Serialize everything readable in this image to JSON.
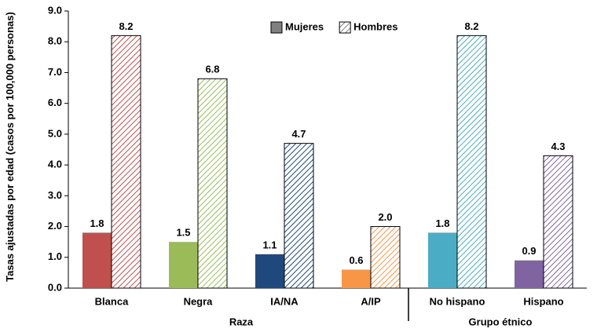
{
  "chart_data": {
    "type": "bar",
    "y_label": "Tasas ajustadas por edad (casos por 100,000 personas)",
    "groups": [
      {
        "name": "Raza",
        "categories": [
          "Blanca",
          "Negra",
          "IA/NA",
          "A/IP"
        ]
      },
      {
        "name": "Grupo étnico",
        "categories": [
          "No hispano",
          "Hispano"
        ]
      }
    ],
    "category_colors": [
      "#c0504d",
      "#9bbb59",
      "#1f497d",
      "#f79646",
      "#4bacc6",
      "#8064a2"
    ],
    "series": [
      {
        "name": "Mujeres",
        "color": "#808080",
        "pattern": "solid",
        "values": [
          1.8,
          1.5,
          1.1,
          0.6,
          1.8,
          0.9
        ],
        "value_labels": [
          "1.8",
          "1.5",
          "1.1",
          "0.6",
          "1.8",
          "0.9"
        ]
      },
      {
        "name": "Hombres",
        "color": "#808080",
        "pattern": "hatch",
        "values": [
          8.2,
          6.8,
          4.7,
          2.0,
          8.2,
          4.3
        ],
        "value_labels": [
          "8.2",
          "6.8",
          "4.7",
          "2.0",
          "8.2",
          "4.3"
        ]
      }
    ],
    "ylim": [
      0,
      9
    ],
    "yticks": [
      {
        "value": 0,
        "label": "0.0"
      },
      {
        "value": 1,
        "label": "1.0"
      },
      {
        "value": 2,
        "label": "2.0"
      },
      {
        "value": 3,
        "label": "3.0"
      },
      {
        "value": 4,
        "label": "4.0"
      },
      {
        "value": 5,
        "label": "5.0"
      },
      {
        "value": 6,
        "label": "6.0"
      },
      {
        "value": 7,
        "label": "7.0"
      },
      {
        "value": 8,
        "label": "8.0"
      },
      {
        "value": 9,
        "label": "9.0"
      }
    ],
    "legend": "top"
  }
}
